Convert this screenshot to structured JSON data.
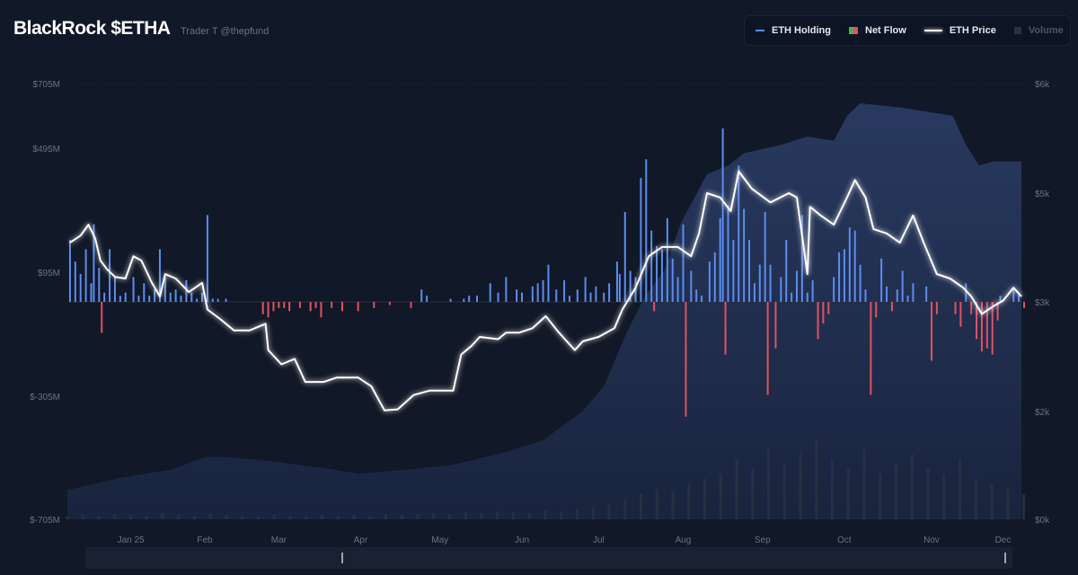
{
  "header": {
    "title": "BlackRock $ETHA",
    "subtitle": "Trader T @thepfund"
  },
  "legend": [
    {
      "label": "ETH Holding",
      "color": "#5b8def",
      "active": true
    },
    {
      "label": "Net Flow",
      "color": "#e05262",
      "active": true
    },
    {
      "label": "ETH Price",
      "color": "#ffffff",
      "active": true
    },
    {
      "label": "Volume",
      "color": "#374151",
      "active": false
    }
  ],
  "chart_data": {
    "type": "bar+line+area",
    "title": "BlackRock $ETHA",
    "x_unit": "day index from start of window",
    "x_range": [
      0,
      362
    ],
    "month_ticks": [
      {
        "label": "Jan 25",
        "day": 24
      },
      {
        "label": "Feb",
        "day": 52
      },
      {
        "label": "Mar",
        "day": 80
      },
      {
        "label": "Apr",
        "day": 111
      },
      {
        "label": "May",
        "day": 141
      },
      {
        "label": "Jun",
        "day": 172
      },
      {
        "label": "Jul",
        "day": 201
      },
      {
        "label": "Aug",
        "day": 233
      },
      {
        "label": "Sep",
        "day": 263
      },
      {
        "label": "Oct",
        "day": 294
      },
      {
        "label": "Nov",
        "day": 327
      },
      {
        "label": "Dec",
        "day": 354
      }
    ],
    "left_axis": {
      "ticks": [
        "$705M",
        "$495M",
        "$95M",
        "$-305M",
        "$-705M"
      ],
      "tick_values": [
        705,
        495,
        95,
        -305,
        -705
      ],
      "ylim": [
        -705,
        705
      ]
    },
    "right_axis": {
      "ticks": [
        "$6k",
        "$5k",
        "$3k",
        "$2k",
        "$0k"
      ],
      "tick_values": [
        6,
        5,
        3,
        2,
        0
      ]
    },
    "eth_price": [
      [
        1,
        4.09
      ],
      [
        5,
        4.22
      ],
      [
        8,
        4.42
      ],
      [
        10.5,
        4.17
      ],
      [
        12.5,
        3.76
      ],
      [
        15,
        3.6
      ],
      [
        18,
        3.46
      ],
      [
        22,
        3.43
      ],
      [
        25,
        3.84
      ],
      [
        28,
        3.76
      ],
      [
        32,
        3.35
      ],
      [
        35,
        3.1
      ],
      [
        37,
        3.51
      ],
      [
        41,
        3.43
      ],
      [
        46,
        3.18
      ],
      [
        51,
        3.35
      ],
      [
        53,
        2.93
      ],
      [
        58,
        2.84
      ],
      [
        63,
        2.74
      ],
      [
        69,
        2.74
      ],
      [
        75,
        2.8
      ],
      [
        76,
        2.56
      ],
      [
        81,
        2.43
      ],
      [
        86,
        2.48
      ],
      [
        90,
        2.27
      ],
      [
        97,
        2.27
      ],
      [
        102,
        2.31
      ],
      [
        110,
        2.31
      ],
      [
        115,
        2.23
      ],
      [
        120,
        2.01
      ],
      [
        125,
        2.02
      ],
      [
        131,
        2.15
      ],
      [
        137,
        2.19
      ],
      [
        146,
        2.19
      ],
      [
        149,
        2.52
      ],
      [
        153,
        2.6
      ],
      [
        156,
        2.68
      ],
      [
        163,
        2.66
      ],
      [
        166,
        2.72
      ],
      [
        171,
        2.72
      ],
      [
        176,
        2.76
      ],
      [
        181,
        2.87
      ],
      [
        186,
        2.72
      ],
      [
        192,
        2.56
      ],
      [
        195,
        2.64
      ],
      [
        201,
        2.68
      ],
      [
        207,
        2.76
      ],
      [
        210,
        2.93
      ],
      [
        215,
        3.26
      ],
      [
        220,
        3.84
      ],
      [
        225,
        4.01
      ],
      [
        231,
        4.01
      ],
      [
        236,
        3.84
      ],
      [
        239,
        4.26
      ],
      [
        242,
        5.0
      ],
      [
        247,
        4.92
      ],
      [
        251,
        4.67
      ],
      [
        254,
        5.2
      ],
      [
        259,
        5.04
      ],
      [
        266,
        4.83
      ],
      [
        273,
        5.0
      ],
      [
        276,
        4.92
      ],
      [
        280,
        3.51
      ],
      [
        281,
        4.75
      ],
      [
        285,
        4.59
      ],
      [
        290,
        4.42
      ],
      [
        295,
        4.92
      ],
      [
        298,
        5.12
      ],
      [
        302,
        4.92
      ],
      [
        305,
        4.34
      ],
      [
        310,
        4.26
      ],
      [
        315,
        4.09
      ],
      [
        320,
        4.59
      ],
      [
        324,
        4.09
      ],
      [
        329,
        3.51
      ],
      [
        334,
        3.43
      ],
      [
        339,
        3.26
      ],
      [
        342,
        3.1
      ],
      [
        346,
        2.89
      ],
      [
        351,
        2.97
      ],
      [
        354,
        3.02
      ],
      [
        358,
        3.26
      ],
      [
        361,
        3.1
      ]
    ],
    "net_flow_musd": [
      [
        1,
        200
      ],
      [
        3,
        130
      ],
      [
        5,
        90
      ],
      [
        7,
        170
      ],
      [
        9,
        60
      ],
      [
        10,
        250
      ],
      [
        12,
        110
      ],
      [
        13,
        -100
      ],
      [
        14,
        30
      ],
      [
        16,
        170
      ],
      [
        18,
        80
      ],
      [
        20,
        20
      ],
      [
        22,
        30
      ],
      [
        25,
        80
      ],
      [
        27,
        20
      ],
      [
        29,
        60
      ],
      [
        31,
        20
      ],
      [
        33,
        40
      ],
      [
        35,
        170
      ],
      [
        37,
        80
      ],
      [
        39,
        30
      ],
      [
        41,
        40
      ],
      [
        43,
        20
      ],
      [
        45,
        70
      ],
      [
        47,
        30
      ],
      [
        49,
        10
      ],
      [
        51,
        30
      ],
      [
        53,
        280
      ],
      [
        55,
        10
      ],
      [
        57,
        10
      ],
      [
        60,
        10
      ],
      [
        74,
        -40
      ],
      [
        76,
        -50
      ],
      [
        78,
        -30
      ],
      [
        80,
        -20
      ],
      [
        82,
        -20
      ],
      [
        84,
        -30
      ],
      [
        88,
        -20
      ],
      [
        92,
        -30
      ],
      [
        94,
        -20
      ],
      [
        96,
        -50
      ],
      [
        100,
        -20
      ],
      [
        104,
        -30
      ],
      [
        110,
        -30
      ],
      [
        116,
        -20
      ],
      [
        122,
        -10
      ],
      [
        130,
        -20
      ],
      [
        134,
        40
      ],
      [
        136,
        20
      ],
      [
        145,
        10
      ],
      [
        150,
        10
      ],
      [
        152,
        20
      ],
      [
        155,
        20
      ],
      [
        160,
        60
      ],
      [
        163,
        30
      ],
      [
        166,
        80
      ],
      [
        170,
        40
      ],
      [
        172,
        30
      ],
      [
        176,
        50
      ],
      [
        178,
        60
      ],
      [
        180,
        70
      ],
      [
        182,
        120
      ],
      [
        185,
        40
      ],
      [
        188,
        70
      ],
      [
        190,
        20
      ],
      [
        193,
        40
      ],
      [
        196,
        80
      ],
      [
        198,
        30
      ],
      [
        200,
        50
      ],
      [
        203,
        30
      ],
      [
        205,
        60
      ],
      [
        208,
        130
      ],
      [
        209,
        90
      ],
      [
        211,
        290
      ],
      [
        213,
        100
      ],
      [
        215,
        80
      ],
      [
        217,
        400
      ],
      [
        219,
        460
      ],
      [
        221,
        230
      ],
      [
        222,
        -30
      ],
      [
        223,
        180
      ],
      [
        225,
        170
      ],
      [
        227,
        270
      ],
      [
        229,
        140
      ],
      [
        231,
        80
      ],
      [
        233,
        250
      ],
      [
        234,
        -370
      ],
      [
        236,
        100
      ],
      [
        238,
        40
      ],
      [
        240,
        20
      ],
      [
        243,
        130
      ],
      [
        245,
        160
      ],
      [
        247,
        270
      ],
      [
        248,
        560
      ],
      [
        249,
        -170
      ],
      [
        250,
        310
      ],
      [
        252,
        200
      ],
      [
        254,
        440
      ],
      [
        256,
        300
      ],
      [
        258,
        200
      ],
      [
        260,
        60
      ],
      [
        262,
        120
      ],
      [
        264,
        290
      ],
      [
        265,
        -300
      ],
      [
        266,
        120
      ],
      [
        268,
        -150
      ],
      [
        270,
        80
      ],
      [
        272,
        200
      ],
      [
        274,
        30
      ],
      [
        276,
        100
      ],
      [
        278,
        280
      ],
      [
        280,
        30
      ],
      [
        282,
        70
      ],
      [
        284,
        -120
      ],
      [
        286,
        -70
      ],
      [
        288,
        -40
      ],
      [
        290,
        80
      ],
      [
        292,
        160
      ],
      [
        294,
        170
      ],
      [
        296,
        240
      ],
      [
        298,
        230
      ],
      [
        300,
        120
      ],
      [
        302,
        40
      ],
      [
        304,
        -300
      ],
      [
        306,
        -50
      ],
      [
        308,
        140
      ],
      [
        310,
        50
      ],
      [
        312,
        -30
      ],
      [
        314,
        40
      ],
      [
        316,
        100
      ],
      [
        318,
        20
      ],
      [
        320,
        60
      ],
      [
        325,
        50
      ],
      [
        327,
        -190
      ],
      [
        329,
        -40
      ],
      [
        336,
        -40
      ],
      [
        338,
        -80
      ],
      [
        340,
        60
      ],
      [
        342,
        -40
      ],
      [
        344,
        -120
      ],
      [
        346,
        -160
      ],
      [
        348,
        -150
      ],
      [
        350,
        -170
      ],
      [
        352,
        -60
      ],
      [
        353,
        20
      ],
      [
        358,
        40
      ],
      [
        360,
        30
      ],
      [
        362,
        -20
      ]
    ],
    "eth_holding_index": [
      [
        0,
        7
      ],
      [
        20,
        10
      ],
      [
        40,
        12
      ],
      [
        52,
        15
      ],
      [
        60,
        15
      ],
      [
        77,
        14
      ],
      [
        100,
        12
      ],
      [
        110,
        11
      ],
      [
        130,
        12
      ],
      [
        145,
        13
      ],
      [
        165,
        16
      ],
      [
        180,
        19
      ],
      [
        195,
        26
      ],
      [
        203,
        32
      ],
      [
        211,
        44
      ],
      [
        218,
        53
      ],
      [
        226,
        60
      ],
      [
        232,
        71
      ],
      [
        242,
        83
      ],
      [
        250,
        85
      ],
      [
        256,
        88
      ],
      [
        270,
        90
      ],
      [
        280,
        92
      ],
      [
        290,
        91
      ],
      [
        295,
        97
      ],
      [
        300,
        100
      ],
      [
        315,
        99
      ],
      [
        335,
        97
      ],
      [
        340,
        90
      ],
      [
        345,
        85
      ],
      [
        350,
        86
      ],
      [
        361,
        86
      ]
    ],
    "volume": [
      3,
      4,
      3,
      5,
      4,
      3,
      6,
      4,
      3,
      5,
      4,
      3,
      3,
      4,
      3,
      3,
      4,
      3,
      4,
      3,
      5,
      4,
      5,
      6,
      5,
      7,
      6,
      8,
      7,
      6,
      9,
      8,
      10,
      12,
      15,
      20,
      25,
      30,
      28,
      35,
      40,
      45,
      60,
      50,
      70,
      55,
      65,
      80,
      60,
      50,
      70,
      45,
      55,
      65,
      50,
      45,
      60,
      40,
      35,
      30,
      25
    ]
  },
  "scrollbar": {
    "range_start": "Apr",
    "range_end": "Dec"
  }
}
